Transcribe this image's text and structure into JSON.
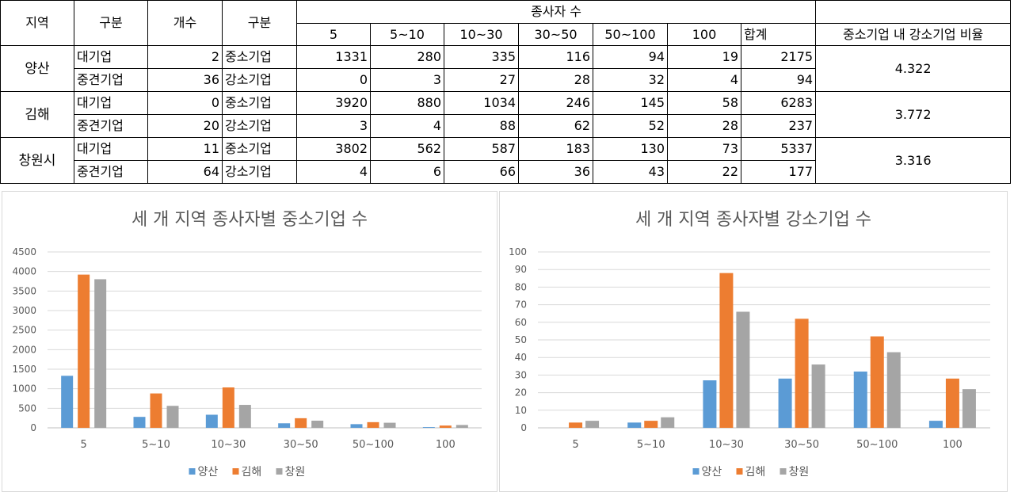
{
  "table": {
    "headers": {
      "region": "지역",
      "type1": "구분",
      "count": "개수",
      "type2": "구분",
      "employees": "종사자 수",
      "size_cols": [
        "5",
        "5~10",
        "10~30",
        "30~50",
        "50~100",
        "100",
        "합계"
      ],
      "ratio": "중소기업 내 강소기업 비율"
    },
    "regions": [
      {
        "name": "양산",
        "ratio": "4.322",
        "rows": [
          {
            "type1": "대기업",
            "count": "2",
            "type2": "중소기업",
            "values": [
              "1331",
              "280",
              "335",
              "116",
              "94",
              "19",
              "2175"
            ]
          },
          {
            "type1": "중견기업",
            "count": "36",
            "type2": "강소기업",
            "values": [
              "0",
              "3",
              "27",
              "28",
              "32",
              "4",
              "94"
            ]
          }
        ]
      },
      {
        "name": "김해",
        "ratio": "3.772",
        "rows": [
          {
            "type1": "대기업",
            "count": "0",
            "type2": "중소기업",
            "values": [
              "3920",
              "880",
              "1034",
              "246",
              "145",
              "58",
              "6283"
            ]
          },
          {
            "type1": "중견기업",
            "count": "20",
            "type2": "강소기업",
            "values": [
              "3",
              "4",
              "88",
              "62",
              "52",
              "28",
              "237"
            ]
          }
        ]
      },
      {
        "name": "창원시",
        "ratio": "3.316",
        "rows": [
          {
            "type1": "대기업",
            "count": "11",
            "type2": "중소기업",
            "values": [
              "3802",
              "562",
              "587",
              "183",
              "130",
              "73",
              "5337"
            ]
          },
          {
            "type1": "중견기업",
            "count": "64",
            "type2": "강소기업",
            "values": [
              "4",
              "6",
              "66",
              "36",
              "43",
              "22",
              "177"
            ]
          }
        ]
      }
    ]
  },
  "chart_data": [
    {
      "type": "bar",
      "title": "세 개 지역 종사자별 중소기업 수",
      "categories": [
        "5",
        "5~10",
        "10~30",
        "30~50",
        "50~100",
        "100"
      ],
      "ylim": [
        0,
        4500
      ],
      "yticks": [
        0,
        500,
        1000,
        1500,
        2000,
        2500,
        3000,
        3500,
        4000,
        4500
      ],
      "grid": true,
      "legend": "bottom",
      "series": [
        {
          "name": "양산",
          "color": "#5b9bd5",
          "values": [
            1331,
            280,
            335,
            116,
            94,
            19
          ]
        },
        {
          "name": "김해",
          "color": "#ed7d31",
          "values": [
            3920,
            880,
            1034,
            246,
            145,
            58
          ]
        },
        {
          "name": "창원",
          "color": "#a5a5a5",
          "values": [
            3802,
            562,
            587,
            183,
            130,
            73
          ]
        }
      ]
    },
    {
      "type": "bar",
      "title": "세 개 지역 종사자별 강소기업 수",
      "categories": [
        "5",
        "5~10",
        "10~30",
        "30~50",
        "50~100",
        "100"
      ],
      "ylim": [
        0,
        100
      ],
      "yticks": [
        0,
        10,
        20,
        30,
        40,
        50,
        60,
        70,
        80,
        90,
        100
      ],
      "grid": true,
      "legend": "bottom",
      "series": [
        {
          "name": "양산",
          "color": "#5b9bd5",
          "values": [
            0,
            3,
            27,
            28,
            32,
            4
          ]
        },
        {
          "name": "김해",
          "color": "#ed7d31",
          "values": [
            3,
            4,
            88,
            62,
            52,
            28
          ]
        },
        {
          "name": "창원",
          "color": "#a5a5a5",
          "values": [
            4,
            6,
            66,
            36,
            43,
            22
          ]
        }
      ]
    }
  ]
}
